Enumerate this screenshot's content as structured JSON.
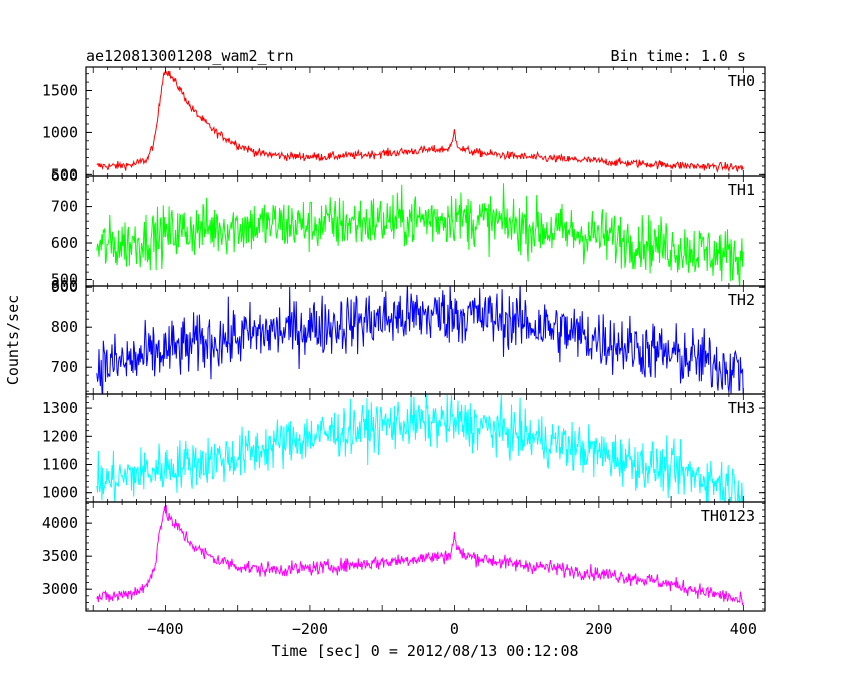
{
  "header": {
    "title": "ae120813001208_wam2_trn",
    "bin_time": "Bin time: 1.0 s"
  },
  "axes": {
    "ylabel": "Counts/sec",
    "xlabel": "Time [sec] 0 = 2012/08/13 00:12:08"
  },
  "chart_data": {
    "type": "line",
    "shared_x": true,
    "x_unit": "sec",
    "xlim": [
      -510,
      430
    ],
    "x_ticks": [
      -400,
      -200,
      0,
      200,
      400
    ],
    "x_tick_labels": [
      "−400",
      "−200",
      "0",
      "200",
      "400"
    ],
    "series": [
      {
        "name": "TH0",
        "color": "#ff0000",
        "ylim": [
          480,
          1780
        ],
        "y_ticks": [
          500,
          1000,
          1500
        ],
        "y_tick_labels": [
          "500",
          "1000",
          "1500"
        ],
        "extra_tick_labels": [
          "600"
        ],
        "x": [
          -495,
          -470,
          -445,
          -425,
          -415,
          -408,
          -403,
          -398,
          -390,
          -380,
          -365,
          -350,
          -330,
          -300,
          -270,
          -230,
          -180,
          -130,
          -80,
          -40,
          -10,
          -3,
          0,
          3,
          10,
          30,
          80,
          130,
          180,
          230,
          280,
          330,
          380,
          400
        ],
        "y": [
          600,
          600,
          615,
          680,
          900,
          1350,
          1700,
          1740,
          1640,
          1520,
          1300,
          1160,
          1000,
          850,
          750,
          715,
          710,
          730,
          760,
          790,
          800,
          860,
          1020,
          880,
          800,
          760,
          720,
          690,
          670,
          640,
          620,
          600,
          590,
          570
        ],
        "noise": 25
      },
      {
        "name": "TH1",
        "color": "#00ff00",
        "ylim": [
          482,
          784
        ],
        "y_ticks": [
          500,
          600,
          700
        ],
        "y_tick_labels": [
          "500",
          "600",
          "700"
        ],
        "extra_tick_labels": [
          "800"
        ],
        "x": [
          -495,
          -450,
          -400,
          -350,
          -300,
          -250,
          -200,
          -150,
          -100,
          -50,
          -10,
          0,
          10,
          50,
          100,
          150,
          200,
          250,
          300,
          350,
          400
        ],
        "y": [
          590,
          600,
          625,
          640,
          645,
          650,
          650,
          655,
          660,
          665,
          670,
          680,
          665,
          660,
          645,
          630,
          620,
          605,
          590,
          575,
          560
        ],
        "noise": 38
      },
      {
        "name": "TH2",
        "color": "#0000ff",
        "ylim": [
          633,
          903
        ],
        "y_ticks": [
          700,
          800,
          900
        ],
        "y_tick_labels": [
          "700",
          "800",
          "900"
        ],
        "x": [
          -495,
          -450,
          -400,
          -350,
          -300,
          -250,
          -200,
          -150,
          -100,
          -50,
          0,
          50,
          100,
          150,
          200,
          250,
          300,
          350,
          400
        ],
        "y": [
          700,
          715,
          740,
          760,
          775,
          790,
          800,
          810,
          820,
          830,
          835,
          825,
          810,
          790,
          770,
          750,
          730,
          715,
          690
        ],
        "noise": 38
      },
      {
        "name": "TH3",
        "color": "#00ffff",
        "ylim": [
          967,
          1350
        ],
        "y_ticks": [
          1000,
          1100,
          1200,
          1300
        ],
        "y_tick_labels": [
          "1000",
          "1100",
          "1200",
          "1300"
        ],
        "x": [
          -495,
          -450,
          -400,
          -350,
          -300,
          -250,
          -200,
          -150,
          -100,
          -50,
          0,
          50,
          100,
          150,
          200,
          250,
          300,
          350,
          400
        ],
        "y": [
          1030,
          1060,
          1090,
          1110,
          1130,
          1170,
          1200,
          1220,
          1240,
          1250,
          1250,
          1230,
          1200,
          1170,
          1140,
          1110,
          1080,
          1050,
          1010
        ],
        "noise": 45
      },
      {
        "name": "TH0123",
        "color": "#ff00ff",
        "ylim": [
          2670,
          4320
        ],
        "y_ticks": [
          3000,
          3500,
          4000
        ],
        "y_tick_labels": [
          "3000",
          "3500",
          "4000"
        ],
        "x": [
          -495,
          -470,
          -445,
          -425,
          -415,
          -408,
          -403,
          -398,
          -390,
          -380,
          -365,
          -350,
          -330,
          -300,
          -270,
          -230,
          -180,
          -130,
          -80,
          -40,
          -10,
          -3,
          0,
          3,
          10,
          30,
          80,
          130,
          180,
          230,
          280,
          330,
          380,
          400
        ],
        "y": [
          2870,
          2890,
          2950,
          3050,
          3350,
          3900,
          4150,
          4150,
          4000,
          3900,
          3700,
          3560,
          3450,
          3350,
          3300,
          3300,
          3330,
          3380,
          3430,
          3480,
          3500,
          3600,
          3850,
          3650,
          3520,
          3480,
          3380,
          3330,
          3260,
          3200,
          3120,
          3000,
          2880,
          2800
        ],
        "noise": 55
      }
    ]
  }
}
